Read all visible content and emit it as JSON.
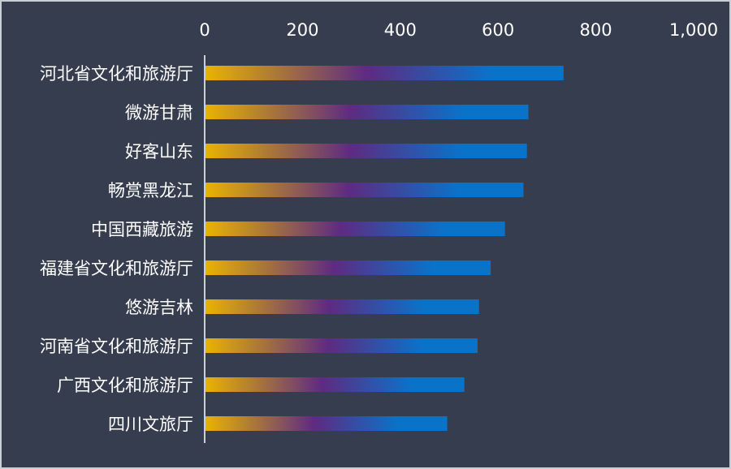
{
  "chart_data": {
    "type": "bar",
    "orientation": "horizontal",
    "title": "",
    "xlabel": "",
    "ylabel": "",
    "xlim": [
      0,
      1000
    ],
    "x_ticks": [
      "0",
      "200",
      "400",
      "600",
      "800",
      "1,000"
    ],
    "x_tick_values": [
      0,
      200,
      400,
      600,
      800,
      1000
    ],
    "axis_position": "top",
    "grid": false,
    "categories": [
      "河北省文化和旅游厅",
      "微游甘肃",
      "好客山东",
      "畅赏黑龙江",
      "中国西藏旅游",
      "福建省文化和旅游厅",
      "悠游吉林",
      "河南省文化和旅游厅",
      "广西文化和旅游厅",
      "四川文旅厅"
    ],
    "values": [
      734,
      662,
      659,
      652,
      614,
      585,
      561,
      558,
      531,
      496
    ],
    "colors": {
      "background": "#353d4e",
      "gradient_start": "#e8b400",
      "gradient_mid": "#5e2a82",
      "gradient_end": "#0a73c8",
      "text": "#ffffff"
    }
  }
}
